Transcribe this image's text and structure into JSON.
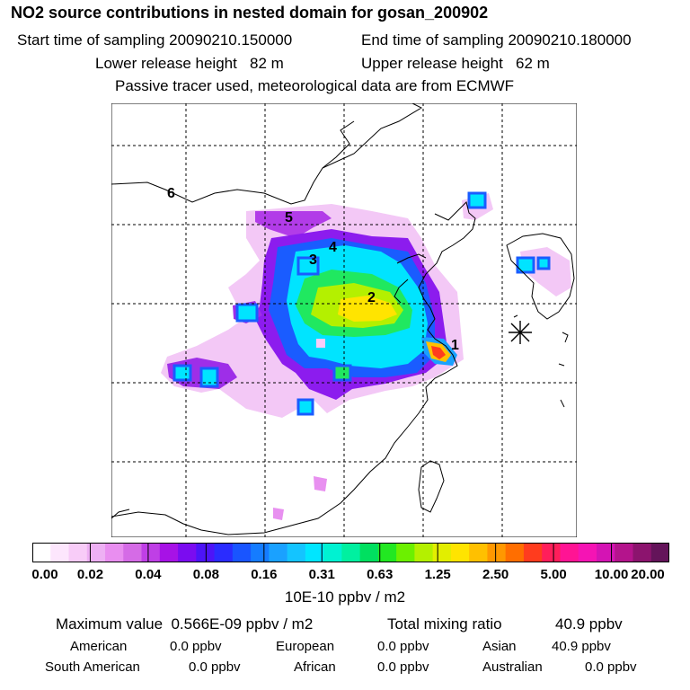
{
  "header": {
    "title": "NO2 source contributions in nested domain for gosan_200902",
    "start_label": "Start time of sampling 20090210.150000",
    "end_label": "End time of sampling 20090210.180000",
    "lower_label": "Lower release height   82 m",
    "upper_label": "Upper release height   62 m",
    "info": "Passive tracer used, meteorological data are from ECMWF"
  },
  "map": {
    "markers": [
      {
        "label": "1"
      },
      {
        "label": "2"
      },
      {
        "label": "3"
      },
      {
        "label": "4"
      },
      {
        "label": "5"
      },
      {
        "label": "6"
      }
    ],
    "receptor": "asterisk-star"
  },
  "colorbar": {
    "ticks": [
      "0.00",
      "0.02",
      "0.04",
      "0.08",
      "0.16",
      "0.31",
      "0.63",
      "1.25",
      "2.50",
      "5.00",
      "10.00",
      "20.00"
    ],
    "colors": [
      "#ffffff",
      "#fde6fd",
      "#f8ccf8",
      "#eeb0f4",
      "#e98ef0",
      "#d56be6",
      "#bf3fe6",
      "#a712e6",
      "#7b0cf0",
      "#4d14f8",
      "#2a2cff",
      "#1955ff",
      "#157cff",
      "#1aa1ff",
      "#14c4ff",
      "#00e6ff",
      "#00f2d2",
      "#00f0a0",
      "#00e060",
      "#22e822",
      "#6cf000",
      "#b4f000",
      "#e2ee00",
      "#ffe400",
      "#ffc000",
      "#ff9800",
      "#ff6e00",
      "#ff3c1e",
      "#ff1e5a",
      "#ff1494",
      "#f514b4",
      "#d414b4",
      "#b4148c",
      "#8c146e",
      "#64145a"
    ],
    "unit": "10E-10 ppbv / m2"
  },
  "stats": {
    "max_label": "Maximum value  0.566E-09 ppbv / m2",
    "total_label": "Total mixing ratio",
    "total_value": "40.9 ppbv",
    "american_label": "American",
    "american_value": "0.0 ppbv",
    "european_label": "European",
    "european_value": "0.0 ppbv",
    "asian_label": "Asian",
    "asian_value": "40.9 ppbv",
    "samerican_label": "South American",
    "samerican_value": "0.0 ppbv",
    "african_label": "African",
    "african_value": "0.0 ppbv",
    "australian_label": "Australian",
    "australian_value": "0.0 ppbv"
  }
}
